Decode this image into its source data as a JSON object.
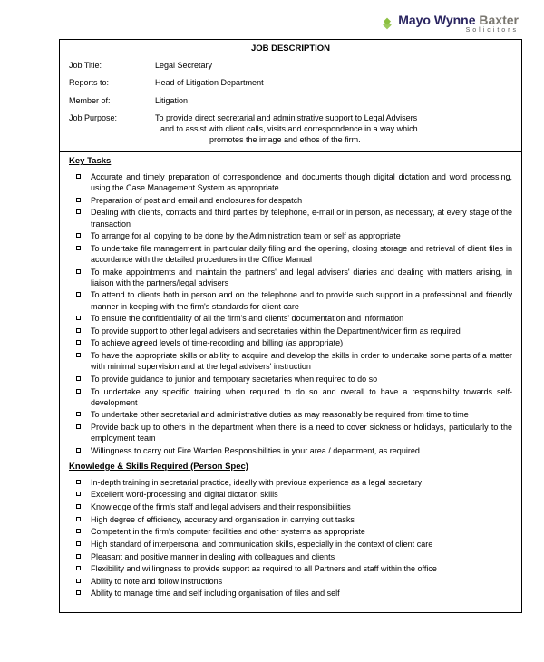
{
  "logo": {
    "company_mayo": "Mayo ",
    "company_wynne": "Wynne ",
    "company_baxter": "Baxter",
    "sub": "Solicitors",
    "diamond_color": "#8bbf3f",
    "text_color_main": "#2a2560",
    "text_color_alt": "#7a7770"
  },
  "doc_title": "JOB DESCRIPTION",
  "fields": {
    "job_title_label": "Job Title:",
    "job_title_value": "Legal Secretary",
    "reports_to_label": "Reports to:",
    "reports_to_value": "Head of Litigation Department",
    "member_of_label": "Member of:",
    "member_of_value": "Litigation",
    "job_purpose_label": "Job Purpose:",
    "job_purpose_line1": "To provide direct secretarial and administrative support to Legal Advisers",
    "job_purpose_line2": "and to assist with client calls, visits and correspondence in a way which",
    "job_purpose_line3": "promotes the image and ethos of the firm."
  },
  "key_tasks_heading": "Key Tasks",
  "key_tasks": [
    "Accurate and timely preparation of correspondence and documents though digital dictation and word processing, using the Case Management System as appropriate",
    "Preparation of post and email and enclosures for despatch",
    "Dealing with clients, contacts and third parties by telephone, e-mail or in person, as necessary, at every stage of the transaction",
    "To arrange for all copying to be done by the Administration team or self as appropriate",
    "To undertake file management in particular daily filing and the opening, closing storage and retrieval of client files in accordance with the detailed procedures in the Office Manual",
    "To make appointments and maintain the partners' and legal advisers' diaries and dealing    with matters arising, in liaison with the partners/legal advisers",
    "To attend to clients both in person and on the telephone and to provide such support in a professional and friendly manner in keeping with the firm's standards for client care",
    "To ensure the confidentiality of all the firm's and clients' documentation and information",
    "To provide support to other legal advisers and secretaries within the Department/wider firm   as required",
    "To achieve agreed levels of time-recording and billing (as appropriate)",
    "To have the appropriate skills or ability to acquire and develop the skills in order to undertake some parts of a matter with minimal supervision and at the legal advisers' instruction",
    "To provide guidance to junior and temporary secretaries when required to do so",
    "To undertake any specific training when required to do so and overall to have a responsibility towards self-development",
    "To undertake other secretarial and administrative duties as may reasonably be required from time to time",
    "Provide back up to others in the department when there is a need to cover sickness or holidays, particularly to the employment team",
    "Willingness to carry out Fire Warden Responsibilities in your area / department, as required"
  ],
  "skills_heading": "Knowledge & Skills Required (Person Spec)",
  "skills": [
    "In-depth training in secretarial practice, ideally with previous experience as a legal secretary",
    "Excellent word-processing and digital dictation skills",
    "Knowledge of the firm's staff and legal advisers and their responsibilities",
    "High degree of efficiency, accuracy and organisation in carrying out tasks",
    "Competent in the firm's computer facilities and other systems as appropriate",
    "High standard of interpersonal and communication skills, especially in the context of client care",
    "Pleasant and positive manner in dealing with colleagues and clients",
    "Flexibility and willingness to provide support as required to all Partners and staff within the office",
    "Ability to note and follow instructions",
    "Ability to manage time and self including organisation of files and self"
  ]
}
